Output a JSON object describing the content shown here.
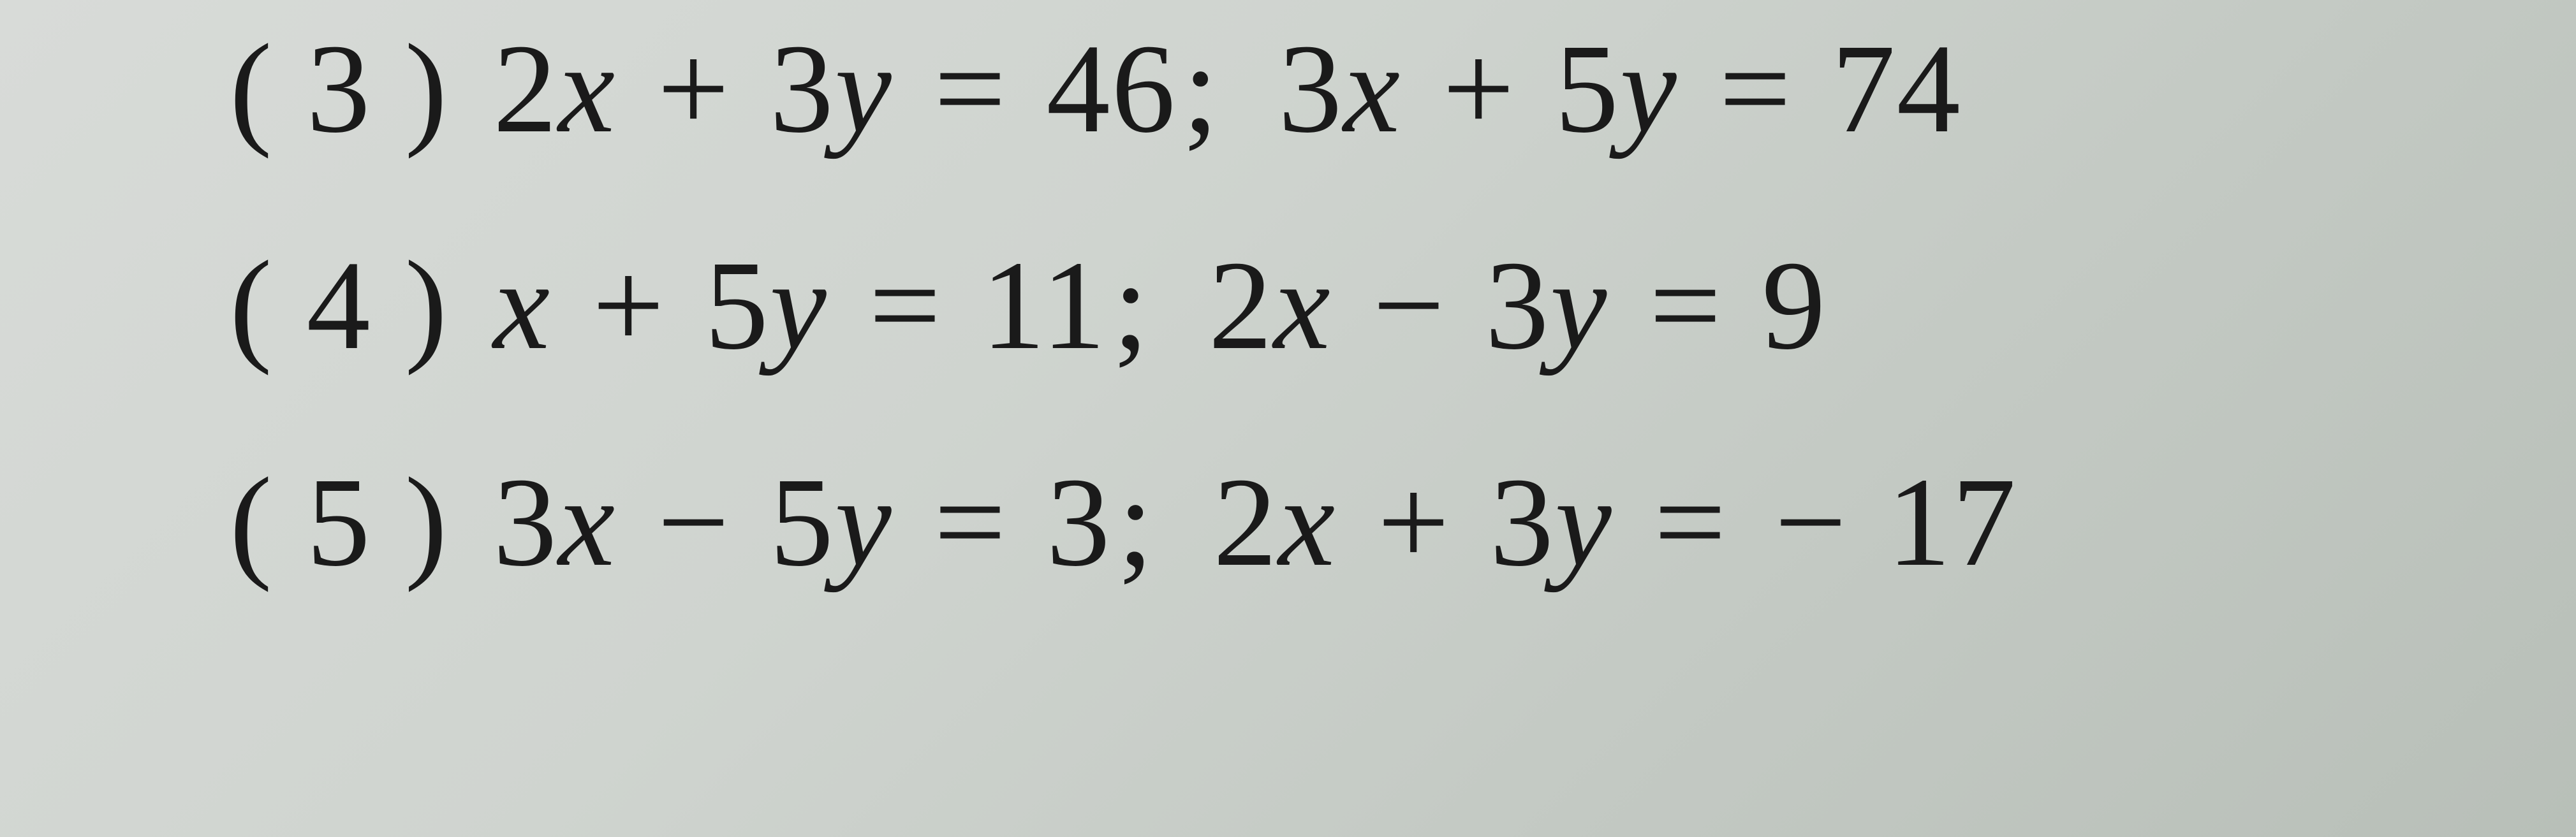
{
  "document": {
    "type": "math-exercise-list",
    "background_color": "#cfd4cf",
    "text_color": "#1a1a1a",
    "font_family": "Georgia, Times New Roman, serif",
    "font_size_pt": 150,
    "items": [
      {
        "number_label": "( 3 )",
        "eq1_lhs": "2x + 3y",
        "eq1_rhs": "46",
        "eq2_lhs": "3x + 5y",
        "eq2_rhs": "74"
      },
      {
        "number_label": "( 4 )",
        "eq1_lhs": "x + 5y",
        "eq1_rhs": "11",
        "eq2_lhs": "2x − 3y",
        "eq2_rhs": "9"
      },
      {
        "number_label": "( 5 )",
        "eq1_lhs": "3x − 5y",
        "eq1_rhs": "3",
        "eq2_lhs": "2x + 3y",
        "eq2_rhs": "− 17"
      }
    ]
  }
}
